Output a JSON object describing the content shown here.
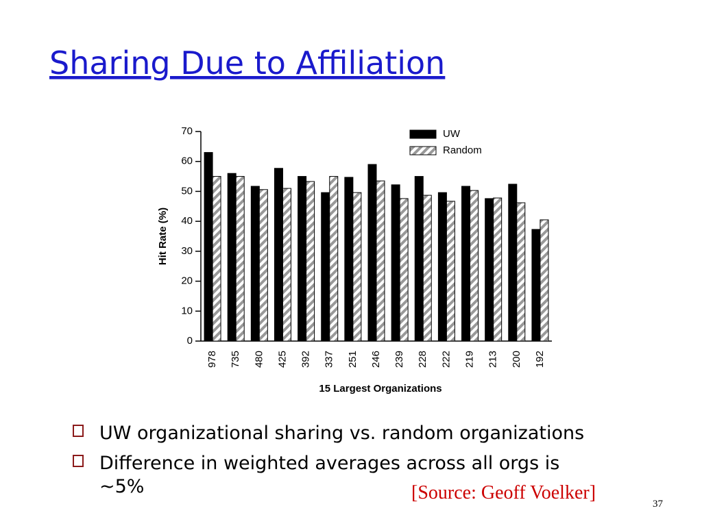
{
  "slide": {
    "title": "Sharing Due to Affiliation",
    "bullets": [
      "UW organizational sharing vs. random organizations",
      "Difference in weighted averages across all orgs is ~5%"
    ],
    "source": "[Source: Geoff Voelker]",
    "page_number": "37"
  },
  "chart_data": {
    "type": "bar",
    "x_label": "15 Largest Organizations",
    "y_label": "Hit Rate (%)",
    "categories": [
      "978",
      "735",
      "480",
      "425",
      "392",
      "337",
      "251",
      "246",
      "239",
      "228",
      "222",
      "219",
      "213",
      "200",
      "192"
    ],
    "series": [
      {
        "name": "UW",
        "color": "#000000",
        "values": [
          63,
          56,
          51.7,
          57.7,
          55,
          49.6,
          54.7,
          59,
          52.2,
          55,
          49.6,
          51.7,
          47.6,
          52.4,
          37.3
        ]
      },
      {
        "name": "Random",
        "color": "#999999",
        "pattern": "hatched",
        "values": [
          55,
          55,
          50.6,
          51,
          53.3,
          55,
          49.6,
          53.5,
          47.6,
          48.7,
          46.7,
          50.3,
          47.8,
          46.2,
          40.5
        ]
      }
    ],
    "ylim": [
      0,
      70
    ],
    "yticks": [
      0,
      10,
      20,
      30,
      40,
      50,
      60,
      70
    ],
    "grid": false,
    "legend": "upper right"
  }
}
